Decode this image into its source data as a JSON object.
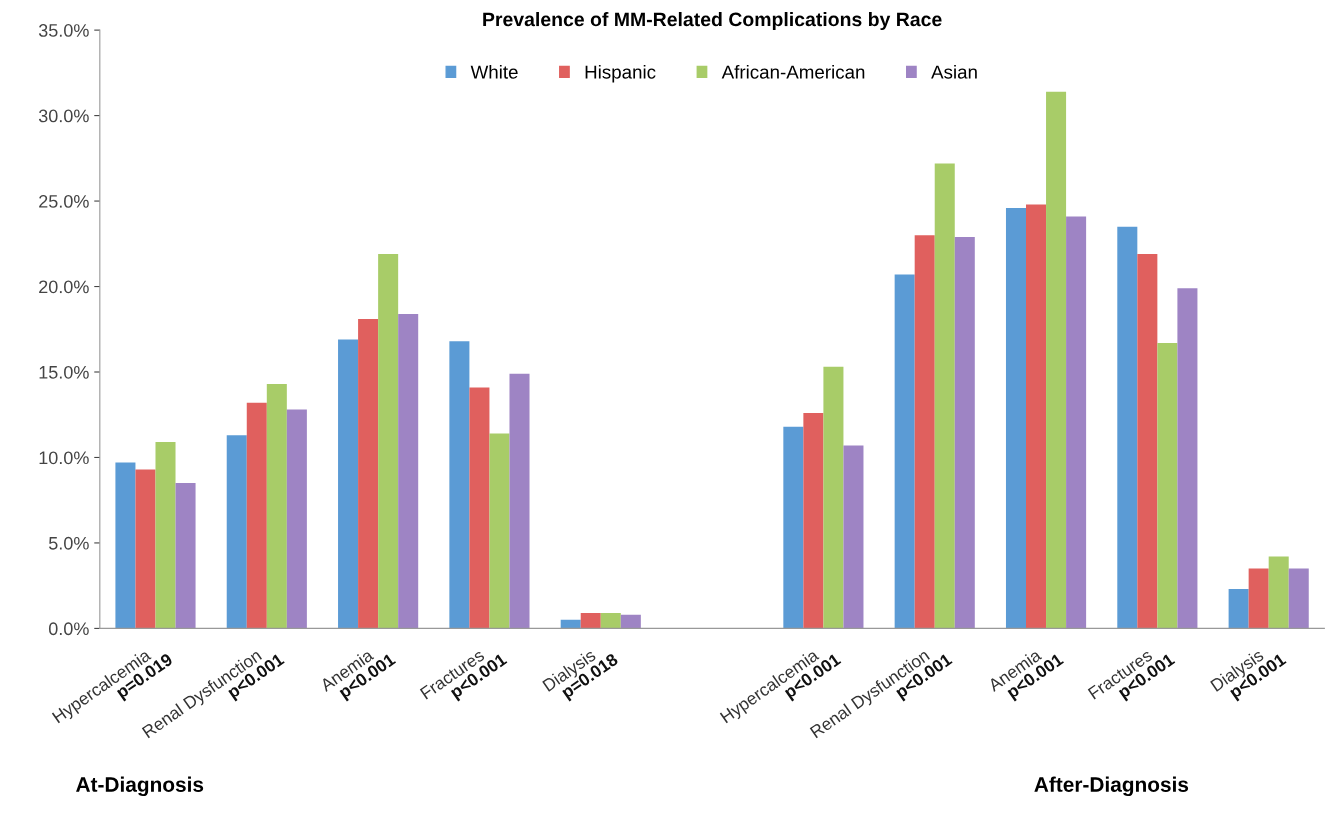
{
  "chart_data": {
    "type": "bar",
    "title": "Prevalence of MM-Related Complications by Race",
    "categories": [
      "Hypercalcemia\np=0.019",
      "Renal Dysfunction\np<0.001",
      "Anemia\np<0.001",
      "Fractures\np<0.001",
      "Dialysis\np=0.018",
      null,
      "Hypercalcemia\np<0.001",
      "Renal Dysfunction\np<0.001",
      "Anemia\np<0.001",
      "Fractures\np<0.001",
      "Dialysis\np<0.001"
    ],
    "series": [
      {
        "name": "White",
        "color": "#5b9bd5",
        "values": [
          9.7,
          11.3,
          16.9,
          16.8,
          0.5,
          null,
          11.8,
          20.7,
          24.6,
          23.5,
          2.3
        ]
      },
      {
        "name": "Hispanic",
        "color": "#e0605e",
        "values": [
          9.3,
          13.2,
          18.1,
          14.1,
          0.9,
          null,
          12.6,
          23.0,
          24.8,
          21.9,
          3.5
        ]
      },
      {
        "name": "African-American",
        "color": "#a8cc68",
        "values": [
          10.9,
          14.3,
          21.9,
          11.4,
          0.9,
          null,
          15.3,
          27.2,
          31.4,
          16.7,
          4.2
        ]
      },
      {
        "name": "Asian",
        "color": "#9e84c4",
        "values": [
          8.5,
          12.8,
          18.4,
          14.9,
          0.8,
          null,
          10.7,
          22.9,
          24.1,
          19.9,
          3.5
        ]
      }
    ],
    "ylim": [
      0,
      35
    ],
    "yticks": [
      {
        "value": 0,
        "label": "0.0%"
      },
      {
        "value": 5,
        "label": "5.0%"
      },
      {
        "value": 10,
        "label": "10.0%"
      },
      {
        "value": 15,
        "label": "15.0%"
      },
      {
        "value": 20,
        "label": "20.0%"
      },
      {
        "value": 25,
        "label": "25.0%"
      },
      {
        "value": 30,
        "label": "30.0%"
      },
      {
        "value": 35,
        "label": "35.0%"
      }
    ],
    "grid": false,
    "legend": "top",
    "annotations": [
      "At-Diagnosis",
      "After-Diagnosis"
    ]
  }
}
